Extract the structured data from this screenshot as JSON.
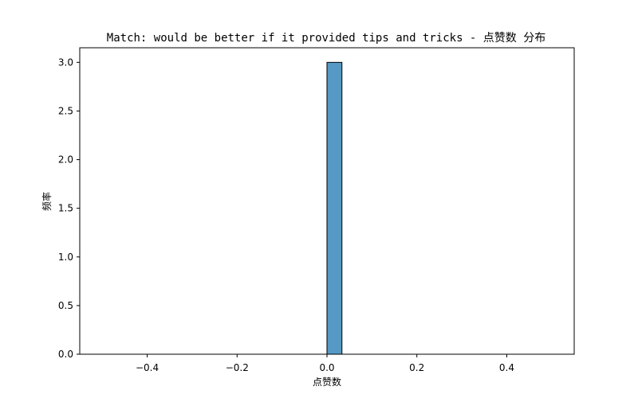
{
  "chart_data": {
    "type": "bar",
    "title": "Match: would be better if it provided tips and tricks - 点赞数 分布",
    "xlabel": "点赞数",
    "ylabel": "频率",
    "xlim": [
      -0.55,
      0.55
    ],
    "ylim": [
      0,
      3.15
    ],
    "xticks": [
      "-0.4",
      "-0.2",
      "0.0",
      "0.2",
      "0.4"
    ],
    "yticks": [
      "0.0",
      "0.5",
      "1.0",
      "1.5",
      "2.0",
      "2.5",
      "3.0"
    ],
    "bins": [
      {
        "x0": 0.0,
        "x1": 0.0333,
        "count": 3
      }
    ],
    "baseline_range": [
      -0.5,
      0.5
    ],
    "grid": false,
    "colors": {
      "bar_fill": "#5599c4",
      "bar_edge": "#000000"
    }
  }
}
